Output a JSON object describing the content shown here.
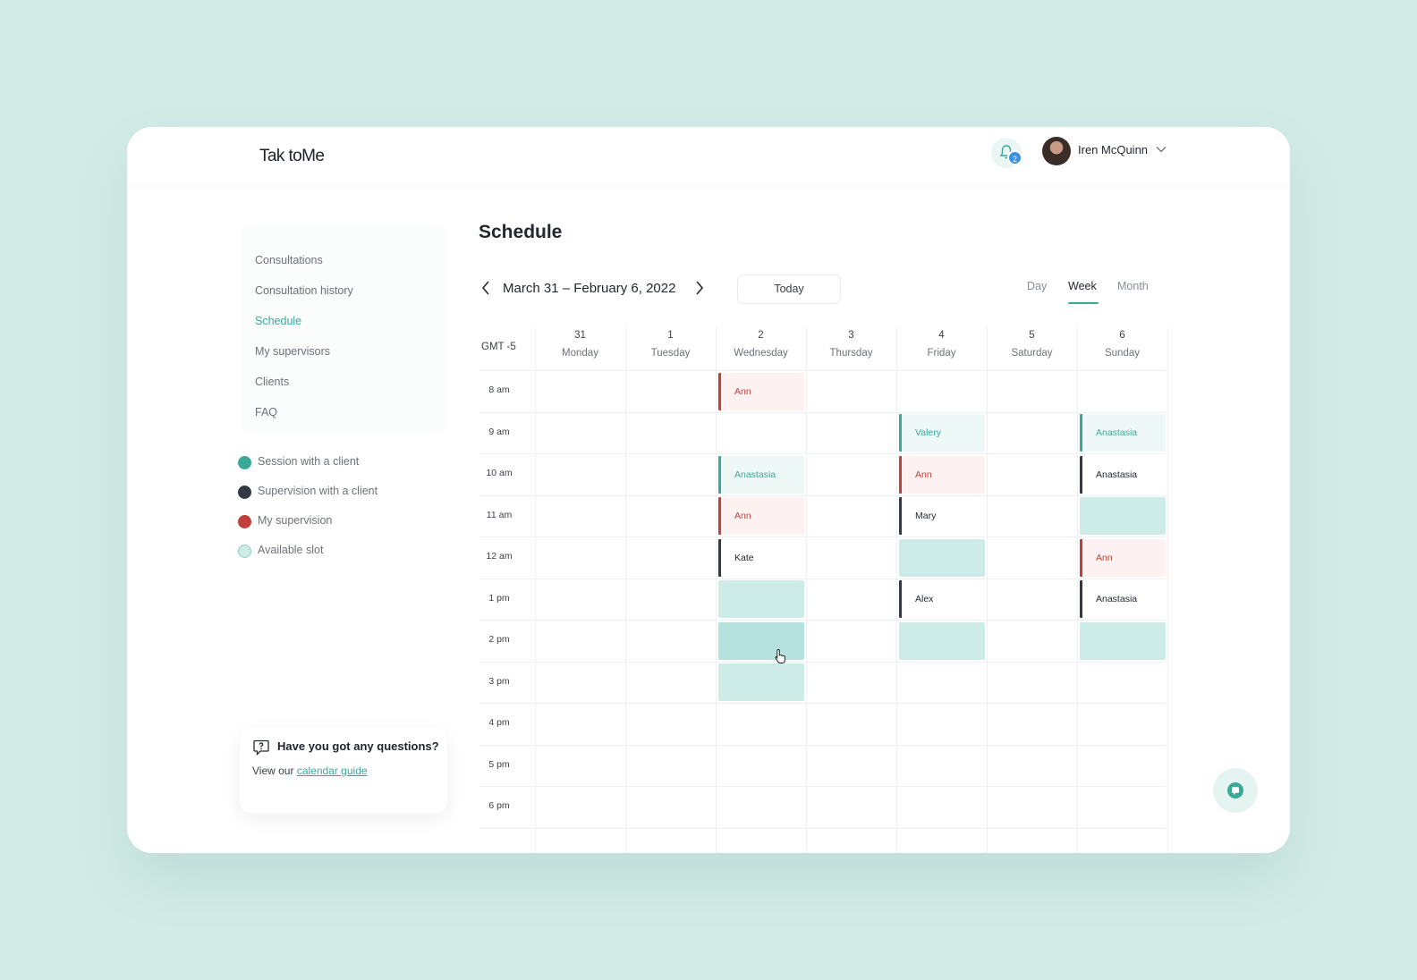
{
  "app": {
    "logo": "Tak toMe"
  },
  "header": {
    "notification_count": "2",
    "user_name": "Iren McQuinn"
  },
  "sidebar": {
    "items": [
      {
        "label": "Consultations",
        "active": false
      },
      {
        "label": "Consultation history",
        "active": false
      },
      {
        "label": "Schedule",
        "active": true
      },
      {
        "label": "My supervisors",
        "active": false
      },
      {
        "label": "Clients",
        "active": false
      },
      {
        "label": "FAQ",
        "active": false
      }
    ]
  },
  "legend": [
    {
      "label": "Session with a client",
      "color": "#3aa99a"
    },
    {
      "label": "Supervision with a client",
      "color": "#353943"
    },
    {
      "label": "My supervision",
      "color": "#c0413a"
    },
    {
      "label": "Available slot",
      "color": "#cdebe7"
    }
  ],
  "help": {
    "title": "Have you got any questions?",
    "text_prefix": "View our ",
    "link": "calendar guide"
  },
  "schedule": {
    "title": "Schedule",
    "range": "March 31 – February 6, 2022",
    "today_label": "Today",
    "views": [
      "Day",
      "Week",
      "Month"
    ],
    "active_view": "Week",
    "timezone": "GMT -5",
    "days": [
      {
        "num": "31",
        "name": "Monday"
      },
      {
        "num": "1",
        "name": "Tuesday"
      },
      {
        "num": "2",
        "name": "Wednesday"
      },
      {
        "num": "3",
        "name": "Thursday"
      },
      {
        "num": "4",
        "name": "Friday"
      },
      {
        "num": "5",
        "name": "Saturday"
      },
      {
        "num": "6",
        "name": "Sunday"
      }
    ],
    "times": [
      "8 am",
      "9 am",
      "10 am",
      "11 am",
      "12 am",
      "1 pm",
      "2 pm",
      "3 pm",
      "4 pm",
      "5 pm",
      "6 pm"
    ],
    "events": [
      {
        "day": 2,
        "hour": 0,
        "type": "mysup",
        "label": "Ann"
      },
      {
        "day": 2,
        "hour": 2,
        "type": "session",
        "label": "Anastasia"
      },
      {
        "day": 2,
        "hour": 3,
        "type": "mysup",
        "label": "Ann"
      },
      {
        "day": 2,
        "hour": 4,
        "type": "supclient",
        "label": "Kate"
      },
      {
        "day": 2,
        "hour": 5,
        "type": "slot",
        "label": ""
      },
      {
        "day": 2,
        "hour": 6,
        "type": "slot",
        "label": "",
        "hover": true
      },
      {
        "day": 2,
        "hour": 7,
        "type": "slot",
        "label": ""
      },
      {
        "day": 4,
        "hour": 1,
        "type": "session",
        "label": "Valery"
      },
      {
        "day": 4,
        "hour": 2,
        "type": "mysup",
        "label": "Ann"
      },
      {
        "day": 4,
        "hour": 3,
        "type": "supclient",
        "label": "Mary"
      },
      {
        "day": 4,
        "hour": 4,
        "type": "slot",
        "label": ""
      },
      {
        "day": 4,
        "hour": 5,
        "type": "supclient",
        "label": "Alex"
      },
      {
        "day": 4,
        "hour": 6,
        "type": "slot",
        "label": ""
      },
      {
        "day": 6,
        "hour": 1,
        "type": "session",
        "label": "Anastasia"
      },
      {
        "day": 6,
        "hour": 2,
        "type": "supclient",
        "label": "Anastasia"
      },
      {
        "day": 6,
        "hour": 3,
        "type": "slot",
        "label": ""
      },
      {
        "day": 6,
        "hour": 4,
        "type": "mysup",
        "label": "Ann"
      },
      {
        "day": 6,
        "hour": 5,
        "type": "supclient",
        "label": "Anastasia"
      },
      {
        "day": 6,
        "hour": 6,
        "type": "slot",
        "label": ""
      }
    ]
  }
}
